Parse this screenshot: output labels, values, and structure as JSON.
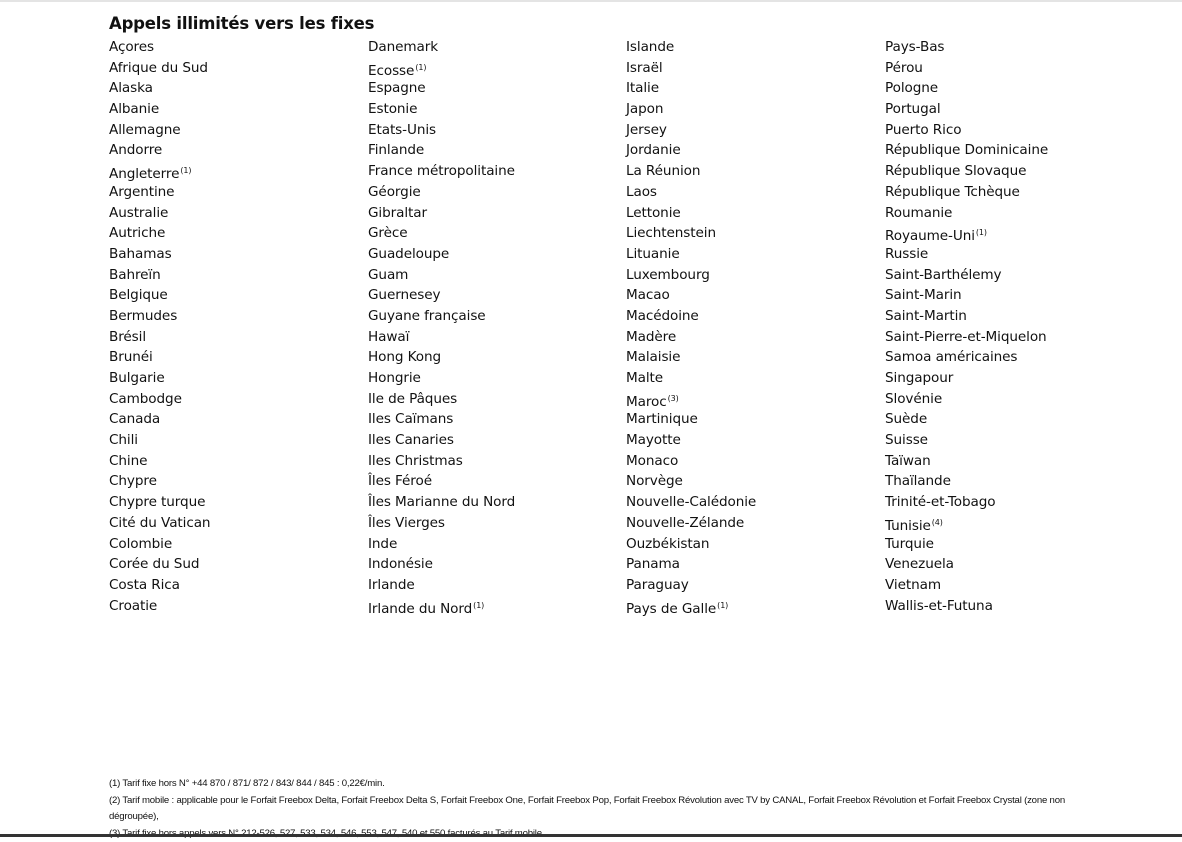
{
  "title": "Appels illimités vers les fixes",
  "columns": [
    [
      {
        "name": "Açores"
      },
      {
        "name": "Afrique du Sud"
      },
      {
        "name": "Alaska"
      },
      {
        "name": "Albanie"
      },
      {
        "name": "Allemagne"
      },
      {
        "name": "Andorre"
      },
      {
        "name": "Angleterre",
        "note": "(1)"
      },
      {
        "name": "Argentine"
      },
      {
        "name": "Australie"
      },
      {
        "name": "Autriche"
      },
      {
        "name": "Bahamas"
      },
      {
        "name": "Bahreïn"
      },
      {
        "name": "Belgique"
      },
      {
        "name": "Bermudes"
      },
      {
        "name": "Brésil"
      },
      {
        "name": "Brunéi"
      },
      {
        "name": "Bulgarie"
      },
      {
        "name": "Cambodge"
      },
      {
        "name": "Canada"
      },
      {
        "name": "Chili"
      },
      {
        "name": "Chine"
      },
      {
        "name": "Chypre"
      },
      {
        "name": "Chypre turque"
      },
      {
        "name": "Cité du Vatican"
      },
      {
        "name": "Colombie"
      },
      {
        "name": "Corée du Sud"
      },
      {
        "name": "Costa Rica"
      },
      {
        "name": "Croatie"
      }
    ],
    [
      {
        "name": "Danemark"
      },
      {
        "name": "Ecosse",
        "note": "(1)"
      },
      {
        "name": "Espagne"
      },
      {
        "name": "Estonie"
      },
      {
        "name": "Etats-Unis"
      },
      {
        "name": "Finlande"
      },
      {
        "name": "France métropolitaine"
      },
      {
        "name": "Géorgie"
      },
      {
        "name": "Gibraltar"
      },
      {
        "name": "Grèce"
      },
      {
        "name": "Guadeloupe"
      },
      {
        "name": "Guam"
      },
      {
        "name": "Guernesey"
      },
      {
        "name": "Guyane française"
      },
      {
        "name": "Hawaï"
      },
      {
        "name": "Hong Kong"
      },
      {
        "name": "Hongrie"
      },
      {
        "name": "Ile de Pâques"
      },
      {
        "name": "Iles Caïmans"
      },
      {
        "name": "Iles Canaries"
      },
      {
        "name": "Iles Christmas"
      },
      {
        "name": "Îles Féroé"
      },
      {
        "name": "Îles Marianne du Nord"
      },
      {
        "name": "Îles Vierges"
      },
      {
        "name": "Inde"
      },
      {
        "name": "Indonésie"
      },
      {
        "name": "Irlande"
      },
      {
        "name": "Irlande du Nord",
        "note": "(1)"
      }
    ],
    [
      {
        "name": "Islande"
      },
      {
        "name": "Israël"
      },
      {
        "name": "Italie"
      },
      {
        "name": "Japon"
      },
      {
        "name": "Jersey"
      },
      {
        "name": "Jordanie"
      },
      {
        "name": "La Réunion"
      },
      {
        "name": "Laos"
      },
      {
        "name": "Lettonie"
      },
      {
        "name": "Liechtenstein"
      },
      {
        "name": "Lituanie"
      },
      {
        "name": "Luxembourg"
      },
      {
        "name": "Macao"
      },
      {
        "name": "Macédoine"
      },
      {
        "name": "Madère"
      },
      {
        "name": "Malaisie"
      },
      {
        "name": "Malte"
      },
      {
        "name": "Maroc",
        "note": "(3)"
      },
      {
        "name": "Martinique"
      },
      {
        "name": "Mayotte"
      },
      {
        "name": "Monaco"
      },
      {
        "name": "Norvège"
      },
      {
        "name": "Nouvelle-Calédonie"
      },
      {
        "name": "Nouvelle-Zélande"
      },
      {
        "name": "Ouzbékistan"
      },
      {
        "name": "Panama"
      },
      {
        "name": "Paraguay"
      },
      {
        "name": "Pays de Galle",
        "note": "(1)"
      }
    ],
    [
      {
        "name": "Pays-Bas"
      },
      {
        "name": "Pérou"
      },
      {
        "name": "Pologne"
      },
      {
        "name": "Portugal"
      },
      {
        "name": "Puerto Rico"
      },
      {
        "name": "République Dominicaine"
      },
      {
        "name": "République Slovaque"
      },
      {
        "name": "République Tchèque"
      },
      {
        "name": "Roumanie"
      },
      {
        "name": "Royaume-Uni",
        "note": "(1)"
      },
      {
        "name": "Russie"
      },
      {
        "name": "Saint-Barthélemy"
      },
      {
        "name": "Saint-Marin"
      },
      {
        "name": "Saint-Martin"
      },
      {
        "name": "Saint-Pierre-et-Miquelon"
      },
      {
        "name": "Samoa américaines"
      },
      {
        "name": "Singapour"
      },
      {
        "name": "Slovénie"
      },
      {
        "name": "Suède"
      },
      {
        "name": "Suisse"
      },
      {
        "name": "Taïwan"
      },
      {
        "name": "Thaïlande"
      },
      {
        "name": "Trinité-et-Tobago"
      },
      {
        "name": "Tunisie",
        "note": "(4)"
      },
      {
        "name": "Turquie"
      },
      {
        "name": "Venezuela"
      },
      {
        "name": "Vietnam"
      },
      {
        "name": "Wallis-et-Futuna"
      }
    ]
  ],
  "footnotes": [
    "(1) Tarif fixe hors N° +44 870 / 871/ 872 / 843/ 844 / 845 : 0,22€/min.",
    "(2) Tarif mobile : applicable pour le Forfait Freebox Delta, Forfait Freebox Delta S, Forfait Freebox One, Forfait Freebox Pop, Forfait Freebox Révolution avec TV by CANAL, Forfait Freebox Révolution et Forfait Freebox Crystal (zone non dégroupée),",
    "(3) Tarif fixe hors appels vers N° 212-526, 527, 533, 534, 546, 553, 547, 540 et 550 facturés au Tarif mobile."
  ]
}
